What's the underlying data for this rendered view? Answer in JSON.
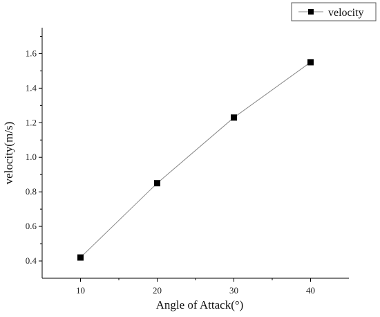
{
  "chart_data": {
    "type": "line",
    "title": "",
    "xlabel": "Angle of Attack(°)",
    "ylabel": "velocity(m/s)",
    "x": [
      10,
      20,
      30,
      40
    ],
    "series": [
      {
        "name": "velocity",
        "values": [
          0.42,
          0.85,
          1.23,
          1.55
        ],
        "color": "#000000",
        "marker": "square"
      }
    ],
    "xlim": [
      5,
      45
    ],
    "ylim": [
      0.3,
      1.75
    ],
    "xticks": [
      10,
      20,
      30,
      40
    ],
    "yticks": [
      0.4,
      0.6,
      0.8,
      1.0,
      1.2,
      1.4,
      1.6
    ],
    "ytick_labels": [
      "0.4",
      "0.6",
      "0.8",
      "1.0",
      "1.2",
      "1.4",
      "1.6"
    ],
    "grid": false,
    "legend_position": "top-right",
    "line_color": "#888888"
  }
}
